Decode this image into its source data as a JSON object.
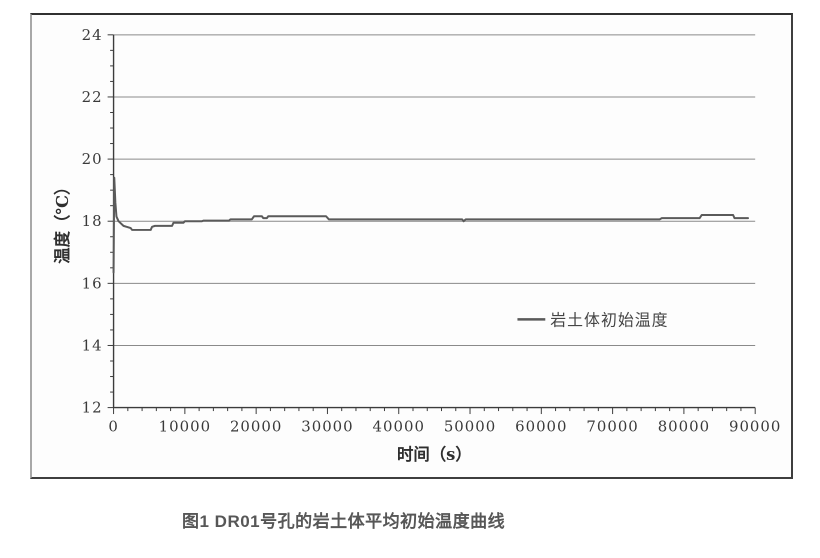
{
  "figure": {
    "caption": "图1 DR01号孔的岩土体平均初始温度曲线"
  },
  "chart_data": {
    "type": "line",
    "title": "",
    "xlabel": "时间（s）",
    "ylabel": "温度（℃）",
    "xlim": [
      0,
      90000
    ],
    "ylim": [
      12,
      24
    ],
    "x_major_step": 10000,
    "x_minor_step": 2000,
    "y_major_step": 2,
    "y_minor_step": 0.5,
    "x_tick_labels": [
      "0",
      "10000",
      "20000",
      "30000",
      "40000",
      "50000",
      "60000",
      "70000",
      "80000",
      "90000"
    ],
    "y_tick_labels": [
      "12",
      "14",
      "16",
      "18",
      "20",
      "22",
      "24"
    ],
    "grid": "horizontal-major-only",
    "legend": {
      "position": "inside-right-middle",
      "entries": [
        {
          "label": "岩土体初始温度",
          "color": "#5a5a5a"
        }
      ]
    },
    "series": [
      {
        "name": "岩土体初始温度",
        "points": [
          [
            0,
            16.35
          ],
          [
            100,
            19.4
          ],
          [
            250,
            18.6
          ],
          [
            400,
            18.15
          ],
          [
            700,
            18.0
          ],
          [
            1400,
            17.85
          ],
          [
            2400,
            17.78
          ],
          [
            2600,
            17.72
          ],
          [
            5200,
            17.72
          ],
          [
            5400,
            17.82
          ],
          [
            5800,
            17.85
          ],
          [
            8200,
            17.85
          ],
          [
            8400,
            17.95
          ],
          [
            9800,
            17.95
          ],
          [
            10000,
            18.0
          ],
          [
            12400,
            18.0
          ],
          [
            12600,
            18.02
          ],
          [
            16200,
            18.02
          ],
          [
            16400,
            18.06
          ],
          [
            19400,
            18.06
          ],
          [
            19700,
            18.16
          ],
          [
            20800,
            18.16
          ],
          [
            21000,
            18.1
          ],
          [
            21500,
            18.1
          ],
          [
            21700,
            18.16
          ],
          [
            29800,
            18.16
          ],
          [
            30200,
            18.06
          ],
          [
            48900,
            18.06
          ],
          [
            49100,
            18.0
          ],
          [
            49400,
            18.06
          ],
          [
            76600,
            18.06
          ],
          [
            76900,
            18.1
          ],
          [
            82200,
            18.1
          ],
          [
            82500,
            18.2
          ],
          [
            86900,
            18.2
          ],
          [
            87100,
            18.1
          ],
          [
            89000,
            18.1
          ]
        ]
      }
    ],
    "colors": {
      "line": "#5a5a5a",
      "grid": "#8a8a8a",
      "axis": "#3c3c3c",
      "tick_label": "#3a3a3a",
      "axis_title": "#2f2f2f",
      "legend_text": "#454545",
      "caption": "#575757",
      "figure_bg": "#fdfdfd"
    }
  }
}
